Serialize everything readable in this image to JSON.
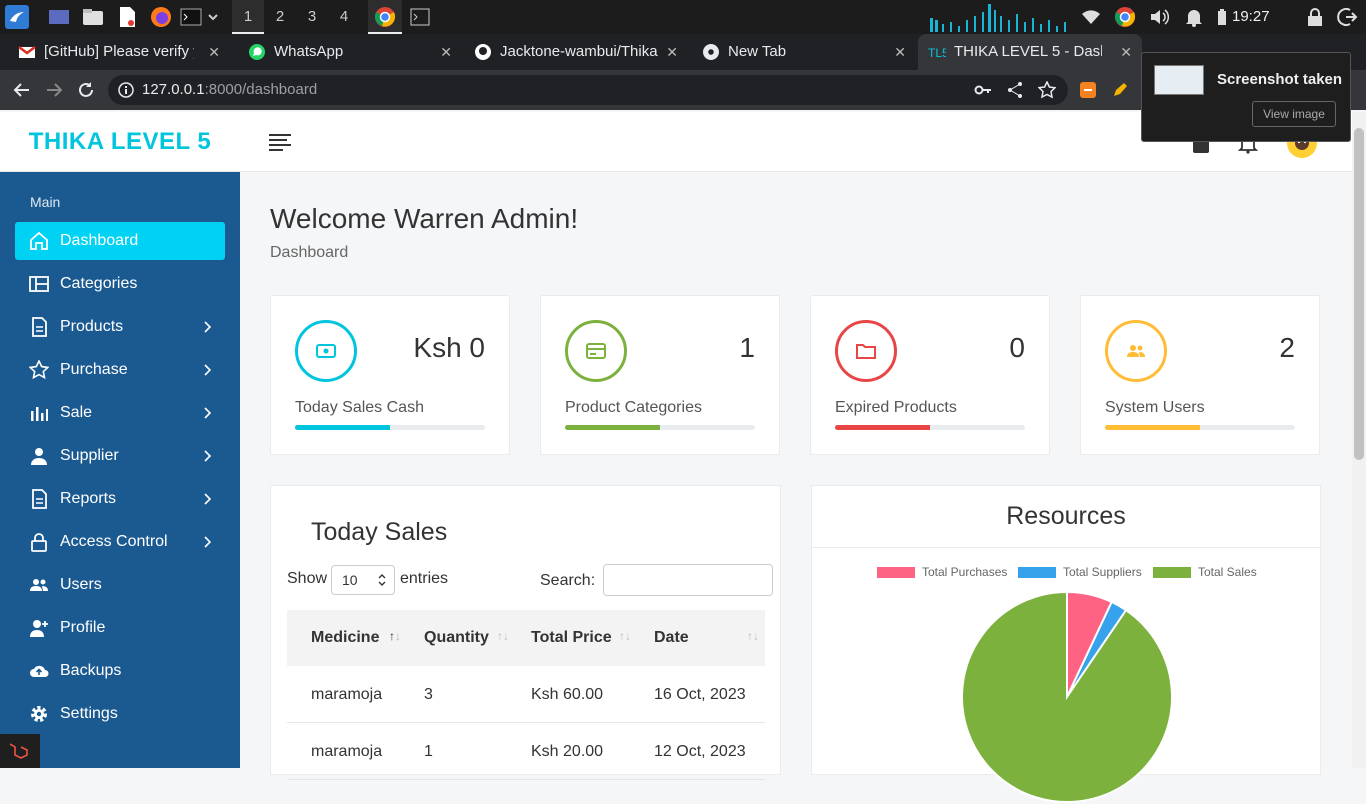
{
  "os": {
    "workspaces": [
      "1",
      "2",
      "3",
      "4"
    ],
    "active_workspace": "1",
    "clock": "19:27"
  },
  "browser": {
    "tabs": [
      {
        "title": "[GitHub] Please verify yo",
        "icon": "gmail-icon"
      },
      {
        "title": "WhatsApp",
        "icon": "whatsapp-icon"
      },
      {
        "title": "Jacktone-wambui/Thika",
        "icon": "github-icon"
      },
      {
        "title": "New Tab",
        "icon": "chrome-icon"
      },
      {
        "title": "THIKA LEVEL 5 - Dashbo",
        "icon": "tl5-icon",
        "active": true
      }
    ],
    "url_host": "127.0.0.1",
    "url_path": ":8000/dashboard"
  },
  "notification": {
    "title": "Screenshot taken",
    "action": "View image"
  },
  "app": {
    "brand": "THIKA LEVEL 5",
    "accent": "#00c5dc",
    "sidebar_color": "#1b5a91"
  },
  "sidebar": {
    "section_label": "Main",
    "items": [
      {
        "label": "Dashboard",
        "icon": "home-icon",
        "active": true,
        "submenu": false
      },
      {
        "label": "Categories",
        "icon": "columns-icon",
        "submenu": false
      },
      {
        "label": "Products",
        "icon": "document-icon",
        "submenu": true
      },
      {
        "label": "Purchase",
        "icon": "star-icon",
        "submenu": true
      },
      {
        "label": "Sale",
        "icon": "bar-chart-icon",
        "submenu": true
      },
      {
        "label": "Supplier",
        "icon": "user-icon",
        "submenu": true
      },
      {
        "label": "Reports",
        "icon": "document-icon",
        "submenu": true
      },
      {
        "label": "Access Control",
        "icon": "lock-icon",
        "submenu": true
      },
      {
        "label": "Users",
        "icon": "users-icon",
        "submenu": false
      },
      {
        "label": "Profile",
        "icon": "user-plus-icon",
        "submenu": false
      },
      {
        "label": "Backups",
        "icon": "cloud-upload-icon",
        "submenu": false
      },
      {
        "label": "Settings",
        "icon": "gear-icon",
        "submenu": false
      }
    ]
  },
  "page": {
    "title": "Welcome Warren Admin!",
    "breadcrumb": "Dashboard"
  },
  "stats": [
    {
      "value": "Ksh 0",
      "label": "Today Sales Cash",
      "color": "#00c5dc",
      "icon": "money-icon",
      "progress": 0.5
    },
    {
      "value": "1",
      "label": "Product Categories",
      "color": "#7bb13c",
      "icon": "card-icon",
      "progress": 0.5
    },
    {
      "value": "0",
      "label": "Expired Products",
      "color": "#e84646",
      "icon": "folder-icon",
      "progress": 0.5
    },
    {
      "value": "2",
      "label": "System Users",
      "color": "#ffbc34",
      "icon": "users-icon",
      "progress": 0.5
    }
  ],
  "sales": {
    "title": "Today Sales",
    "show_label": "Show",
    "page_length": "10",
    "entries_label": "entries",
    "search_label": "Search:",
    "columns": [
      "Medicine",
      "Quantity",
      "Total Price",
      "Date"
    ],
    "rows": [
      [
        "maramoja",
        "3",
        "Ksh 60.00",
        "16 Oct, 2023"
      ],
      [
        "maramoja",
        "1",
        "Ksh 20.00",
        "12 Oct, 2023"
      ]
    ]
  },
  "resources": {
    "title": "Resources",
    "chart_data": {
      "type": "pie",
      "labels": [
        "Total Purchases",
        "Total Suppliers",
        "Total Sales"
      ],
      "values": [
        7,
        2.5,
        90.5
      ],
      "colors": [
        "#ff6384",
        "#36a2eb",
        "#7bb13c"
      ]
    }
  }
}
